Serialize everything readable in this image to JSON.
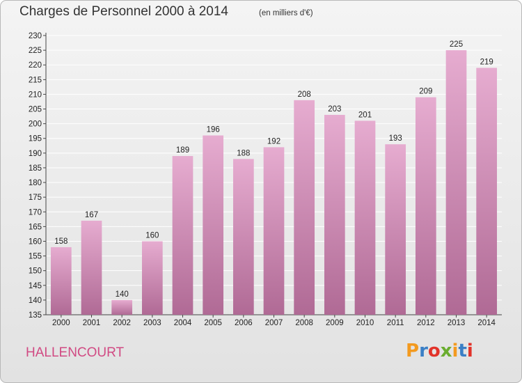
{
  "chart_data": {
    "type": "bar",
    "title": "Charges de Personnel 2000 à 2014",
    "subtitle": "(en milliers d'€)",
    "categories": [
      "2000",
      "2001",
      "2002",
      "2003",
      "2004",
      "2005",
      "2006",
      "2007",
      "2008",
      "2009",
      "2010",
      "2011",
      "2012",
      "2013",
      "2014"
    ],
    "values": [
      158,
      167,
      140,
      160,
      189,
      196,
      188,
      192,
      208,
      203,
      201,
      193,
      209,
      225,
      219
    ],
    "ylim": [
      135,
      230
    ],
    "ytick_step": 5,
    "grid": true,
    "legend": "none",
    "bar_color_top": "#e6acd0",
    "bar_color_bottom": "#b06a95"
  },
  "footer": {
    "commune": "HALLENCOURT",
    "logo_text": "Proxiti",
    "logo_colors": [
      "#f39a1f",
      "#3a7fc6",
      "#e2332a",
      "#6aad2f",
      "#f39a1f",
      "#3a7fc6",
      "#e2332a"
    ]
  },
  "colors": {
    "title_text": "#333333",
    "commune_text": "#d14a83"
  }
}
